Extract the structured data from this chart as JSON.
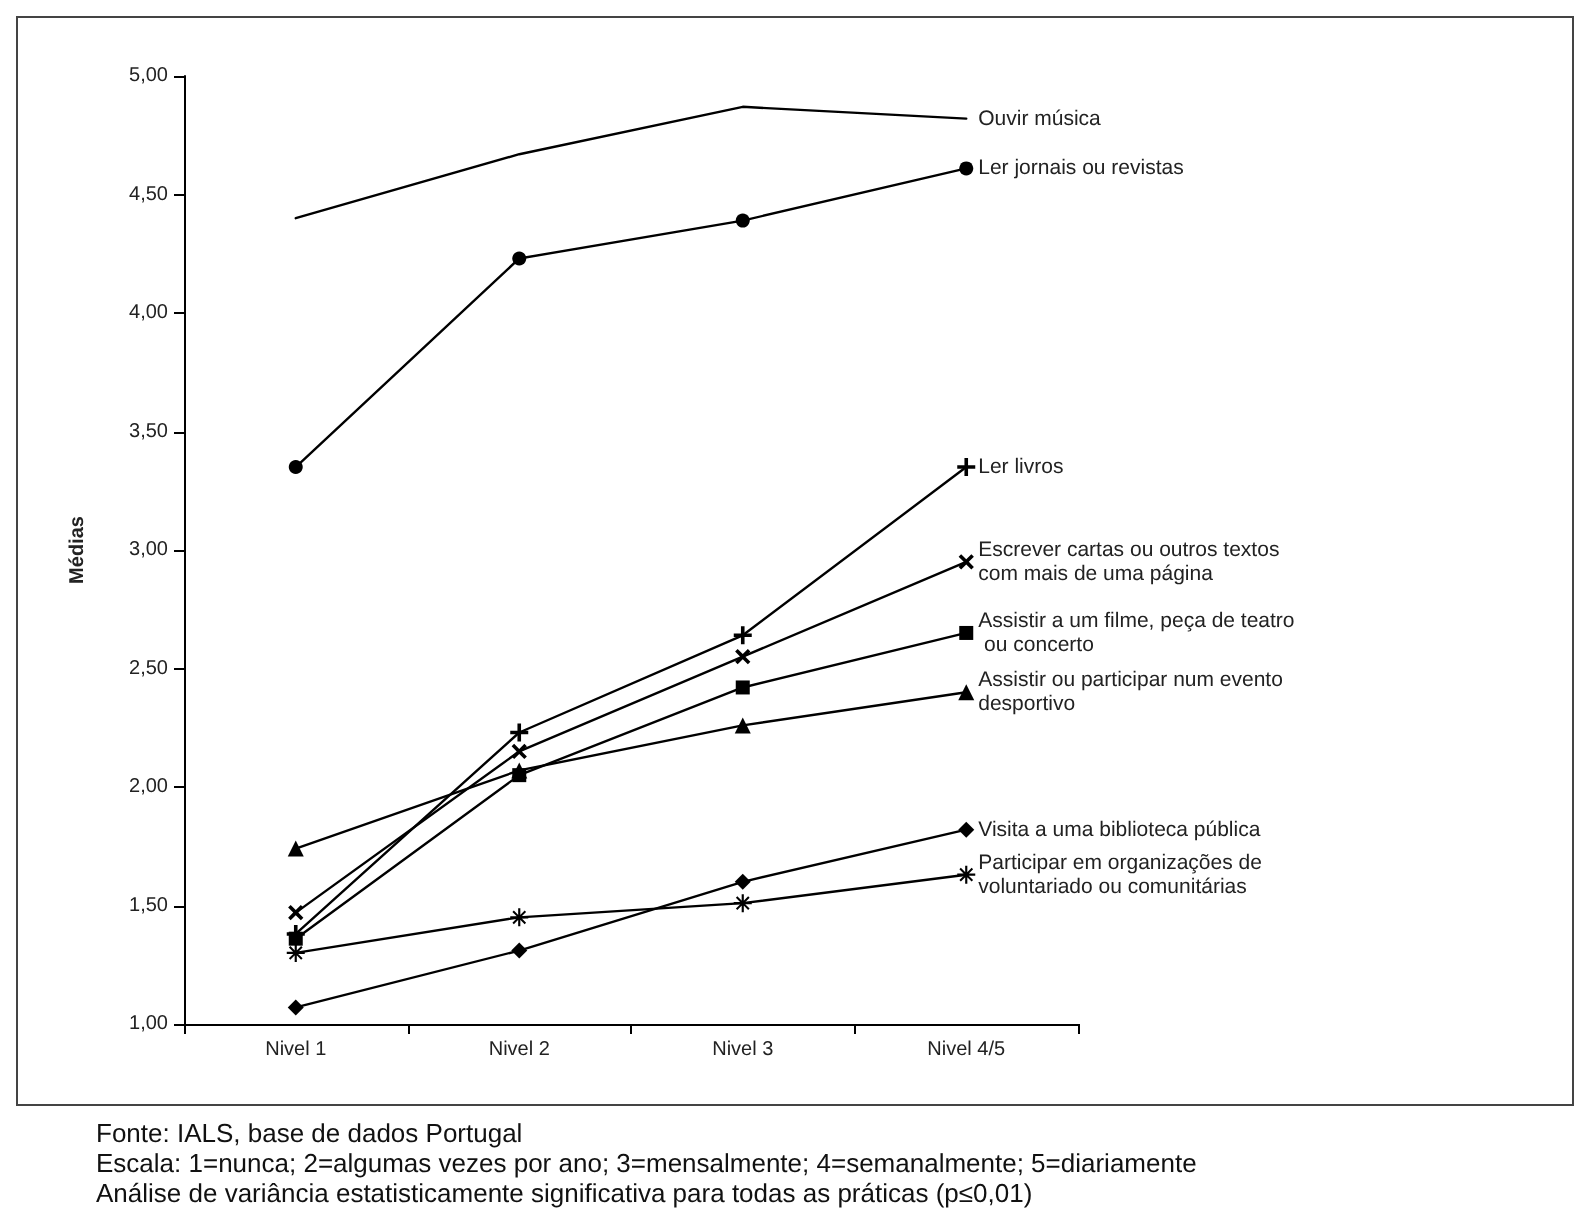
{
  "chart_data": {
    "type": "line",
    "ylabel": "Médias",
    "categories": [
      "Nivel 1",
      "Nivel 2",
      "Nivel 3",
      "Nivel 4/5"
    ],
    "ylim": [
      1,
      5
    ],
    "yticks": [
      {
        "value": 1,
        "label": "1,00"
      },
      {
        "value": 1.5,
        "label": "1,50"
      },
      {
        "value": 2,
        "label": "2,00"
      },
      {
        "value": 2.5,
        "label": "2,50"
      },
      {
        "value": 3,
        "label": "3,00"
      },
      {
        "value": 3.5,
        "label": "3,50"
      },
      {
        "value": 4,
        "label": "4,00"
      },
      {
        "value": 4.5,
        "label": "4,50"
      },
      {
        "value": 5,
        "label": "5,00"
      }
    ],
    "grid": false,
    "legend": false,
    "line_style": "solid",
    "series": [
      {
        "name": "Ouvir música",
        "color": "#000000",
        "marker": "none",
        "values": [
          4.4,
          4.67,
          4.87,
          4.82
        ]
      },
      {
        "name": "Ler jornais ou revistas",
        "color": "#000000",
        "marker": "circle",
        "values": [
          3.35,
          4.23,
          4.39,
          4.61
        ]
      },
      {
        "name": "Ler livros",
        "color": "#000000",
        "marker": "cross",
        "values": [
          1.38,
          2.23,
          2.64,
          3.35
        ]
      },
      {
        "name": "Escrever cartas ou outros textos com mais de uma página",
        "color": "#000000",
        "marker": "x",
        "values": [
          1.47,
          2.15,
          2.55,
          2.95
        ]
      },
      {
        "name": "Assistir a um filme, peça de teatro ou concerto",
        "color": "#000000",
        "marker": "square",
        "values": [
          1.36,
          2.05,
          2.42,
          2.65
        ]
      },
      {
        "name": "Assistir ou participar num evento desportivo",
        "color": "#000000",
        "marker": "triangle",
        "values": [
          1.74,
          2.07,
          2.26,
          2.4
        ]
      },
      {
        "name": "Visita a uma biblioteca pública",
        "color": "#000000",
        "marker": "diamond",
        "values": [
          1.07,
          1.31,
          1.6,
          1.82
        ]
      },
      {
        "name": "Participar em organizações de voluntariado ou comunitárias",
        "color": "#000000",
        "marker": "star",
        "values": [
          1.3,
          1.45,
          1.51,
          1.63
        ]
      }
    ],
    "annotations": [
      "Fonte: IALS, base de dados Portugal",
      "Escala: 1=nunca; 2=algumas vezes por ano; 3=mensalmente; 4=semanalmente; 5=diariamente",
      "Análise de variância estatisticamente significativa para todas as práticas (p≤0,01)"
    ]
  }
}
